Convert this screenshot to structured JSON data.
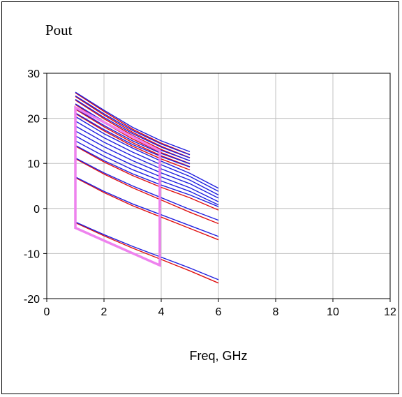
{
  "title": "Pout",
  "chart_data": {
    "type": "line",
    "title": "Pout",
    "xlabel": "Freq, GHz",
    "ylabel": "",
    "xlim": [
      0,
      12
    ],
    "ylim": [
      -20,
      30
    ],
    "xticks": [
      0,
      2,
      4,
      6,
      8,
      10,
      12
    ],
    "yticks": [
      -20,
      -10,
      0,
      10,
      20,
      30
    ],
    "grid": true,
    "colors": {
      "series_blue": "#2020e0",
      "series_red": "#e01010",
      "overlay_magenta": "#ee82ee",
      "grid": "#c0c0c0"
    },
    "series_groups": [
      {
        "x": [
          1,
          2,
          3,
          4,
          5
        ],
        "pairs": true,
        "curves": [
          [
            25.8,
            21.8,
            18.0,
            15.0,
            12.6
          ],
          [
            25.0,
            21.0,
            17.3,
            14.3,
            11.9
          ],
          [
            24.2,
            20.2,
            16.6,
            13.6,
            11.2
          ],
          [
            23.2,
            19.3,
            15.8,
            12.9,
            10.6
          ],
          [
            22.2,
            18.4,
            15.0,
            12.2,
            9.9
          ],
          [
            21.2,
            17.5,
            14.2,
            11.5,
            9.2
          ]
        ]
      },
      {
        "x": [
          1,
          2,
          3,
          4,
          5,
          6
        ],
        "pairs": false,
        "curves": [
          [
            20.4,
            16.6,
            13.4,
            10.5,
            7.8,
            4.5
          ],
          [
            19.4,
            15.7,
            12.5,
            9.7,
            7.1,
            3.8
          ],
          [
            18.3,
            14.7,
            11.6,
            8.8,
            6.3,
            3.0
          ],
          [
            17.2,
            13.7,
            10.6,
            7.9,
            5.5,
            2.3
          ],
          [
            16.1,
            12.6,
            9.6,
            7.0,
            4.6,
            1.5
          ],
          [
            15.0,
            11.6,
            8.6,
            6.1,
            3.8,
            0.8
          ]
        ]
      },
      {
        "x": [
          1,
          2,
          3,
          4,
          5,
          6
        ],
        "pairs": true,
        "curves": [
          [
            14.0,
            10.6,
            7.7,
            5.2,
            3.0,
            0.4
          ],
          [
            11.2,
            7.9,
            5.0,
            2.4,
            -0.2,
            -2.6
          ],
          [
            7.0,
            3.8,
            1.0,
            -1.4,
            -3.8,
            -6.2
          ],
          [
            -3.0,
            -5.8,
            -8.4,
            -10.8,
            -13.2,
            -15.8
          ]
        ]
      }
    ],
    "overlay_polygon": {
      "points": [
        [
          1.0,
          22.4
        ],
        [
          3.95,
          12.8
        ],
        [
          3.95,
          -12.6
        ],
        [
          1.0,
          -4.3
        ]
      ],
      "color": "#ee82ee"
    }
  }
}
